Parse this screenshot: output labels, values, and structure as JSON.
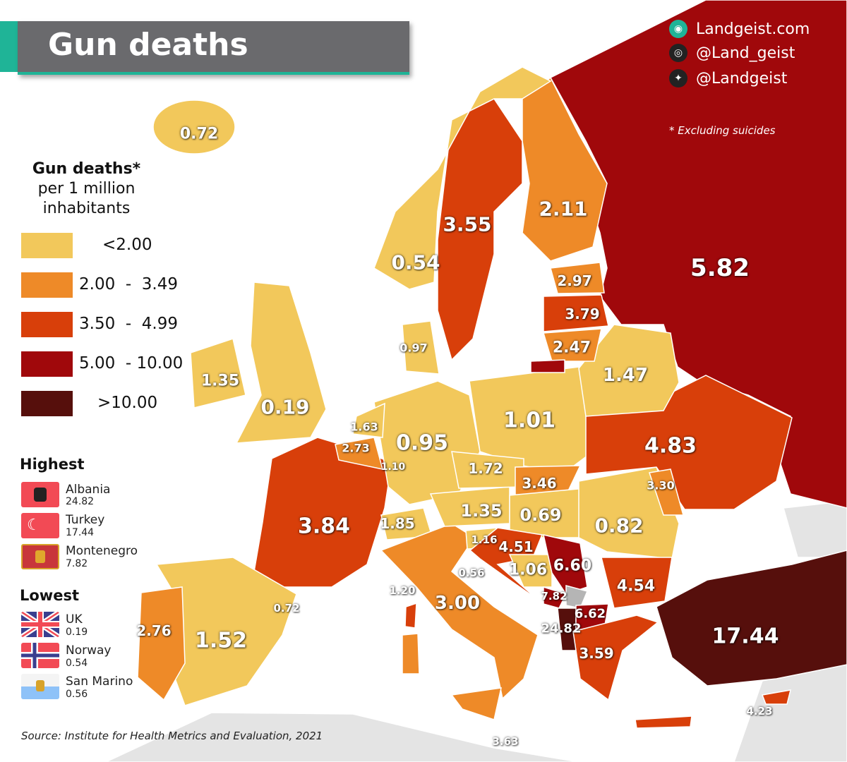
{
  "title": "Gun deaths",
  "social": {
    "website": "Landgeist.com",
    "instagram": "@Land_geist",
    "twitter": "@Landgeist"
  },
  "note": "* Excluding suicides",
  "legend": {
    "title": "Gun deaths*",
    "subtitle_1": "per 1 million",
    "subtitle_2": "inhabitants",
    "bins": [
      {
        "label": "<2.00",
        "color": "#f2c85b"
      },
      {
        "label": "2.00  -  3.49",
        "color": "#ee8a28"
      },
      {
        "label": "3.50  -  4.99",
        "color": "#d83f0a"
      },
      {
        "label": "5.00  - 10.00",
        "color": "#a0080b"
      },
      {
        "label": ">10.00",
        "color": "#560f0c"
      }
    ]
  },
  "highest": {
    "heading": "Highest",
    "items": [
      {
        "country": "Albania",
        "value": "24.82"
      },
      {
        "country": "Turkey",
        "value": "17.44"
      },
      {
        "country": "Montenegro",
        "value": "7.82"
      }
    ]
  },
  "lowest": {
    "heading": "Lowest",
    "items": [
      {
        "country": "UK",
        "value": "0.19"
      },
      {
        "country": "Norway",
        "value": "0.54"
      },
      {
        "country": "San Marino",
        "value": "0.56"
      }
    ]
  },
  "source": "Source: Institute for Health Metrics and Evaluation, 2021",
  "map_values": [
    {
      "country": "Iceland",
      "value": "0.72"
    },
    {
      "country": "Norway",
      "value": "0.54"
    },
    {
      "country": "Sweden",
      "value": "3.55"
    },
    {
      "country": "Finland",
      "value": "2.11"
    },
    {
      "country": "Russia",
      "value": "5.82"
    },
    {
      "country": "Estonia",
      "value": "2.97"
    },
    {
      "country": "Latvia",
      "value": "3.79"
    },
    {
      "country": "Lithuania",
      "value": "2.47"
    },
    {
      "country": "Denmark",
      "value": "0.97"
    },
    {
      "country": "Belarus",
      "value": "1.47"
    },
    {
      "country": "Ireland",
      "value": "1.35"
    },
    {
      "country": "United Kingdom",
      "value": "0.19"
    },
    {
      "country": "Netherlands",
      "value": "1.63"
    },
    {
      "country": "Belgium",
      "value": "2.73"
    },
    {
      "country": "Luxembourg",
      "value": "1.10"
    },
    {
      "country": "Germany",
      "value": "0.95"
    },
    {
      "country": "Poland",
      "value": "1.01"
    },
    {
      "country": "Ukraine",
      "value": "4.83"
    },
    {
      "country": "Czechia",
      "value": "1.72"
    },
    {
      "country": "Slovakia",
      "value": "3.46"
    },
    {
      "country": "Moldova",
      "value": "3.30"
    },
    {
      "country": "France",
      "value": "3.84"
    },
    {
      "country": "Switzerland",
      "value": "1.85"
    },
    {
      "country": "Liechtenstein",
      "value": "1.35"
    },
    {
      "country": "Austria",
      "value": "1.35"
    },
    {
      "country": "Hungary",
      "value": "0.69"
    },
    {
      "country": "Romania",
      "value": "0.82"
    },
    {
      "country": "Slovenia",
      "value": "1.16"
    },
    {
      "country": "Croatia",
      "value": "4.51"
    },
    {
      "country": "Bosnia",
      "value": "1.06"
    },
    {
      "country": "Serbia",
      "value": "6.60"
    },
    {
      "country": "Bulgaria",
      "value": "4.54"
    },
    {
      "country": "San Marino",
      "value": "0.56"
    },
    {
      "country": "Monaco",
      "value": "1.20"
    },
    {
      "country": "Italy",
      "value": "3.00"
    },
    {
      "country": "Montenegro",
      "value": "7.82"
    },
    {
      "country": "North Macedonia",
      "value": "6.62"
    },
    {
      "country": "Albania",
      "value": "24.82"
    },
    {
      "country": "Greece",
      "value": "3.59"
    },
    {
      "country": "Turkey",
      "value": "17.44"
    },
    {
      "country": "Andorra",
      "value": "0.72"
    },
    {
      "country": "Portugal",
      "value": "2.76"
    },
    {
      "country": "Spain",
      "value": "1.52"
    },
    {
      "country": "Cyprus",
      "value": "4.23"
    },
    {
      "country": "Malta",
      "value": "3.63"
    }
  ]
}
